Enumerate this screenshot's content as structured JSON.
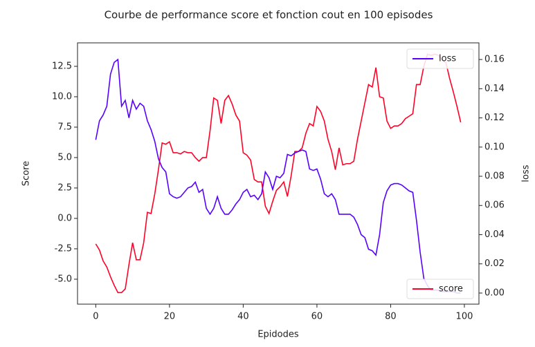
{
  "chart_data": {
    "type": "line",
    "title": "Courbe de performance score et fonction cout en 100 episodes",
    "xlabel": "Epidodes",
    "ylabel": "Score",
    "y2label": "loss",
    "x": [
      0,
      1,
      2,
      3,
      4,
      5,
      6,
      7,
      8,
      9,
      10,
      11,
      12,
      13,
      14,
      15,
      16,
      17,
      18,
      19,
      20,
      21,
      22,
      23,
      24,
      25,
      26,
      27,
      28,
      29,
      30,
      31,
      32,
      33,
      34,
      35,
      36,
      37,
      38,
      39,
      40,
      41,
      42,
      43,
      44,
      45,
      46,
      47,
      48,
      49,
      50,
      51,
      52,
      53,
      54,
      55,
      56,
      57,
      58,
      59,
      60,
      61,
      62,
      63,
      64,
      65,
      66,
      67,
      68,
      69,
      70,
      71,
      72,
      73,
      74,
      75,
      76,
      77,
      78,
      79,
      80,
      81,
      82,
      83,
      84,
      85,
      86,
      87,
      88,
      89,
      90,
      91,
      92,
      93,
      94,
      95,
      96,
      97,
      98,
      99
    ],
    "xlim": [
      -4.95,
      103.95
    ],
    "xticks": [
      0,
      20,
      40,
      60,
      80,
      100
    ],
    "ylim": [
      -7.05,
      14.43
    ],
    "yticks": [
      {
        "value": -5,
        "label": "-5.0"
      },
      -2.5,
      {
        "value": 0,
        "label": "0.0"
      },
      2.5,
      {
        "value": 5,
        "label": "5.0"
      },
      7.5,
      {
        "value": 10,
        "label": "10.0"
      },
      12.5
    ],
    "y2lim": [
      -0.0076,
      0.1714
    ],
    "y2ticks": [
      {
        "value": 0,
        "label": "0.00"
      },
      {
        "value": 0.02,
        "label": "0.02"
      },
      {
        "value": 0.04,
        "label": "0.04"
      },
      {
        "value": 0.06,
        "label": "0.06"
      },
      {
        "value": 0.08,
        "label": "0.08"
      },
      {
        "value": 0.1,
        "label": "0.10"
      },
      {
        "value": 0.12,
        "label": "0.12"
      },
      {
        "value": 0.14,
        "label": "0.14"
      },
      {
        "value": 0.16,
        "label": "0.16"
      }
    ],
    "grid": false,
    "series": [
      {
        "name": "score",
        "color": "#ff0026",
        "axis": "y",
        "legend": "lower right",
        "values": [
          -2.1,
          -2.6,
          -3.5,
          -4.0,
          -4.8,
          -5.5,
          -6.1,
          -6.1,
          -5.8,
          -3.8,
          -2.0,
          -3.4,
          -3.4,
          -2.0,
          0.5,
          0.4,
          2.0,
          4.0,
          6.2,
          6.1,
          6.3,
          5.4,
          5.4,
          5.3,
          5.5,
          5.4,
          5.4,
          5.0,
          4.7,
          5.0,
          5.0,
          7.2,
          9.9,
          9.7,
          7.8,
          9.7,
          10.1,
          9.4,
          8.5,
          8.0,
          5.4,
          5.2,
          4.8,
          3.2,
          3.0,
          3.0,
          1.0,
          0.4,
          1.4,
          2.3,
          2.6,
          3.0,
          1.8,
          3.5,
          5.5,
          5.5,
          5.8,
          7.0,
          7.8,
          7.6,
          9.2,
          8.8,
          8.0,
          6.5,
          5.5,
          4.0,
          5.8,
          4.4,
          4.5,
          4.5,
          4.7,
          6.5,
          8.0,
          9.5,
          11.0,
          10.8,
          12.4,
          10.0,
          9.9,
          8.0,
          7.4,
          7.6,
          7.6,
          7.8,
          8.2,
          8.4,
          8.6,
          11.0,
          11.0,
          12.5,
          13.5,
          13.4,
          13.5,
          13.4,
          13.0,
          12.8,
          11.5,
          10.4,
          9.2,
          7.9
        ]
      },
      {
        "name": "loss",
        "color": "#5500ff",
        "axis": "y2",
        "legend": "upper right",
        "values": [
          0.105,
          0.118,
          0.122,
          0.128,
          0.15,
          0.158,
          0.16,
          0.128,
          0.132,
          0.12,
          0.132,
          0.126,
          0.13,
          0.128,
          0.118,
          0.112,
          0.104,
          0.092,
          0.086,
          0.083,
          0.068,
          0.066,
          0.065,
          0.066,
          0.069,
          0.072,
          0.073,
          0.076,
          0.069,
          0.071,
          0.058,
          0.054,
          0.058,
          0.066,
          0.058,
          0.054,
          0.054,
          0.057,
          0.061,
          0.064,
          0.069,
          0.071,
          0.066,
          0.067,
          0.064,
          0.068,
          0.083,
          0.079,
          0.071,
          0.08,
          0.079,
          0.082,
          0.095,
          0.094,
          0.096,
          0.097,
          0.098,
          0.097,
          0.085,
          0.084,
          0.085,
          0.078,
          0.068,
          0.066,
          0.068,
          0.064,
          0.054,
          0.054,
          0.054,
          0.054,
          0.052,
          0.047,
          0.04,
          0.038,
          0.03,
          0.029,
          0.026,
          0.04,
          0.062,
          0.07,
          0.074,
          0.075,
          0.075,
          0.074,
          0.072,
          0.07,
          0.069,
          0.05,
          0.028,
          0.01,
          0.005,
          0.002,
          0.002,
          0.002,
          0.001,
          0.001,
          0.001,
          0.001,
          0.0,
          0.0
        ]
      }
    ]
  }
}
